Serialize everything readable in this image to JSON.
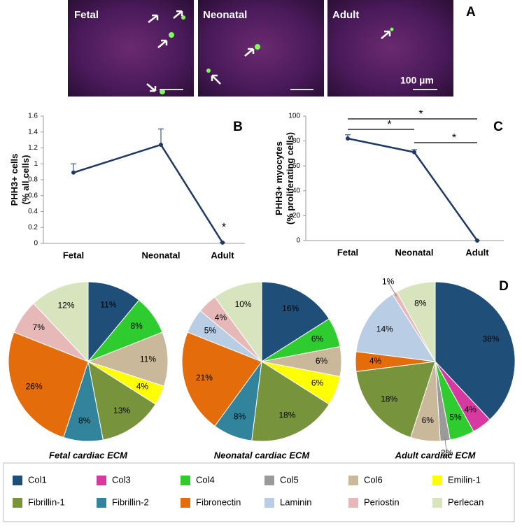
{
  "panels": {
    "label": "A",
    "images": [
      {
        "label": "Fetal"
      },
      {
        "label": "Neonatal"
      },
      {
        "label": "Adult",
        "scale_bar": "100 µm"
      }
    ]
  },
  "chart_data": [
    {
      "type": "line",
      "label": "B",
      "y_label": [
        "PHH3+ cells",
        "(% all cells)"
      ],
      "categories": [
        "Fetal",
        "Neonatal",
        "Adult"
      ],
      "series": [
        {
          "color": "#1f3864",
          "values": [
            0.89,
            1.24,
            0.01
          ],
          "errors": [
            0.11,
            0.2,
            0
          ]
        }
      ],
      "ylim": [
        0,
        1.6
      ],
      "yticks": [
        0,
        0.2,
        0.4,
        0.6,
        0.8,
        1,
        1.2,
        1.4,
        1.6
      ],
      "annotations": [
        "*"
      ]
    },
    {
      "type": "line",
      "label": "C",
      "y_label": [
        "PHH3+ myocytes",
        "(% proliferating cells)"
      ],
      "categories": [
        "Fetal",
        "Neonatal",
        "Adult"
      ],
      "series": [
        {
          "color": "#1f3864",
          "values": [
            82,
            71,
            0
          ],
          "errors": [
            3,
            2,
            0
          ]
        }
      ],
      "ylim": [
        0,
        100
      ],
      "yticks": [
        0,
        20,
        40,
        60,
        80,
        100
      ],
      "annotations": [
        "*",
        "*",
        "*"
      ]
    },
    {
      "type": "pie",
      "label": "D",
      "legend": {
        "categories": [
          "Col1",
          "Col3",
          "Col4",
          "Col5",
          "Col6",
          "Emilin-1",
          "Fibrillin-1",
          "Fibrillin-2",
          "Fibronectin",
          "Laminin",
          "Periostin",
          "Perlecan"
        ],
        "colors": [
          "#1f4e79",
          "#d63aa0",
          "#2ecc2e",
          "#9a9a9a",
          "#c9b99a",
          "#ffff00",
          "#77933c",
          "#31849b",
          "#e46c0a",
          "#b9cde5",
          "#e6b9b8",
          "#d7e4bd"
        ]
      },
      "pies": [
        {
          "title": "Fetal cardiac ECM",
          "categories": [
            "Col1",
            "Col4",
            "Col6",
            "Emilin-1",
            "Fibrillin-1",
            "Fibrillin-2",
            "Fibronectin",
            "Periostin",
            "Perlecan"
          ],
          "values": [
            11,
            8,
            11,
            4,
            13,
            8,
            26,
            7,
            12
          ],
          "value_labels": [
            "11%",
            "8%",
            "11%",
            "4%",
            "13%",
            "8%",
            "26%",
            "7%",
            "12%"
          ]
        },
        {
          "title": "Neonatal cardiac ECM",
          "categories": [
            "Col1",
            "Col4",
            "Col6",
            "Emilin-1",
            "Fibrillin-1",
            "Fibrillin-2",
            "Fibronectin",
            "Laminin",
            "Periostin",
            "Perlecan"
          ],
          "values": [
            16,
            6,
            6,
            6,
            18,
            8,
            21,
            5,
            4,
            10
          ],
          "value_labels": [
            "16%",
            "6%",
            "6%",
            "6%",
            "18%",
            "8%",
            "21%",
            "5%",
            "4%",
            "10%"
          ]
        },
        {
          "title": "Adult cardiac ECM",
          "categories": [
            "Col1",
            "Col3",
            "Col4",
            "Col5",
            "Col6",
            "Fibrillin-1",
            "Fibronectin",
            "Laminin",
            "Periostin",
            "Perlecan"
          ],
          "values": [
            38,
            4,
            5,
            2,
            6,
            18,
            4,
            14,
            1,
            8
          ],
          "value_labels": [
            "38%",
            "4%",
            "5%",
            "2%",
            "6%",
            "18%",
            "4%",
            "14%",
            "1%",
            "8%"
          ]
        }
      ]
    }
  ]
}
